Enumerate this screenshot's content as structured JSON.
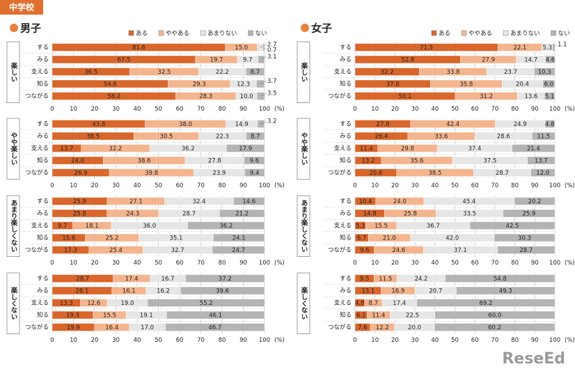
{
  "header": "中学校",
  "watermark": "ReseEd",
  "chart_data": [
    {
      "type": "bar",
      "orientation": "horizontal",
      "stacked": true,
      "title": "男子",
      "panel": "楽しい",
      "legend": "top-right",
      "categories": [
        "する",
        "みる",
        "支える",
        "知る",
        "つながる"
      ],
      "series": [
        {
          "name": "ある",
          "color": "#d9662a",
          "values": [
            81.6,
            67.5,
            36.5,
            54.6,
            58.2
          ]
        },
        {
          "name": "ややある",
          "color": "#f4b58e",
          "values": [
            15.0,
            19.7,
            32.5,
            29.3,
            28.3
          ],
          "value_labels": [
            "15.0",
            "19.7",
            "32.5",
            "29.3",
            "28.3"
          ]
        },
        {
          "name": "あまりない",
          "color": "#e6e6e6",
          "values": [
            2.7,
            9.7,
            22.2,
            12.3,
            10.0
          ],
          "value_labels": [
            "2.7",
            "9.7",
            "22.2",
            "12.3",
            "10.0"
          ]
        },
        {
          "name": "ない",
          "color": "#b4b4b4",
          "values": [
            0.7,
            3.1,
            8.7,
            3.7,
            3.5
          ]
        }
      ],
      "xlim": [
        0,
        100
      ],
      "xticks": [
        0,
        10,
        20,
        30,
        40,
        50,
        60,
        70,
        80,
        90,
        100
      ],
      "x_unit": "(%)",
      "grid": true
    },
    {
      "type": "bar",
      "orientation": "horizontal",
      "stacked": true,
      "panel": "やや楽しい",
      "categories": [
        "する",
        "みる",
        "支える",
        "知る",
        "つながる"
      ],
      "series": [
        {
          "name": "ある",
          "color": "#d9662a",
          "values": [
            43.8,
            38.5,
            13.7,
            24.0,
            26.9
          ],
          "value_labels": [
            "43.8",
            "38.5",
            "13.7",
            "24.0",
            "26.9"
          ]
        },
        {
          "name": "ややある",
          "color": "#f4b58e",
          "values": [
            38.0,
            30.5,
            32.2,
            38.6,
            39.8
          ],
          "value_labels": [
            "38.0",
            "30.5",
            "32.2",
            "38.6",
            "39.8"
          ]
        },
        {
          "name": "あまりない",
          "color": "#e6e6e6",
          "values": [
            14.9,
            22.3,
            36.2,
            27.8,
            23.9
          ]
        },
        {
          "name": "ない",
          "color": "#b4b4b4",
          "values": [
            3.2,
            8.7,
            17.9,
            9.6,
            9.4
          ]
        }
      ],
      "xlim": [
        0,
        100
      ],
      "xticks": [
        0,
        10,
        20,
        30,
        40,
        50,
        60,
        70,
        80,
        90,
        100
      ],
      "x_unit": "(%)",
      "grid": true
    },
    {
      "type": "bar",
      "orientation": "horizontal",
      "stacked": true,
      "panel": "あまり楽しくない",
      "categories": [
        "する",
        "みる",
        "支える",
        "知る",
        "つながる"
      ],
      "series": [
        {
          "name": "ある",
          "color": "#d9662a",
          "values": [
            25.9,
            25.8,
            9.7,
            15.6,
            17.3
          ]
        },
        {
          "name": "ややある",
          "color": "#f4b58e",
          "values": [
            27.1,
            24.3,
            18.1,
            25.2,
            25.4
          ]
        },
        {
          "name": "あまりない",
          "color": "#e6e6e6",
          "values": [
            32.4,
            28.7,
            36.0,
            35.1,
            32.7
          ],
          "value_labels": [
            "32.4",
            "28.7",
            "36.0",
            "35.1",
            "32.7"
          ]
        },
        {
          "name": "ない",
          "color": "#b4b4b4",
          "values": [
            14.6,
            21.2,
            36.2,
            24.1,
            24.7
          ]
        }
      ],
      "xlim": [
        0,
        100
      ],
      "xticks": [
        0,
        10,
        20,
        30,
        40,
        50,
        60,
        70,
        80,
        90,
        100
      ],
      "x_unit": "(%)",
      "grid": true
    },
    {
      "type": "bar",
      "orientation": "horizontal",
      "stacked": true,
      "panel": "楽しくない",
      "categories": [
        "する",
        "みる",
        "支える",
        "知る",
        "つながる"
      ],
      "series": [
        {
          "name": "ある",
          "color": "#d9662a",
          "values": [
            28.7,
            28.1,
            13.3,
            19.3,
            19.9
          ]
        },
        {
          "name": "ややある",
          "color": "#f4b58e",
          "values": [
            17.4,
            16.1,
            12.6,
            15.5,
            16.4
          ]
        },
        {
          "name": "あまりない",
          "color": "#e6e6e6",
          "values": [
            16.7,
            16.2,
            19.0,
            19.1,
            17.0
          ],
          "value_labels": [
            "16.7",
            "16.2",
            "19.0",
            "19.1",
            "17.0"
          ]
        },
        {
          "name": "ない",
          "color": "#b4b4b4",
          "values": [
            37.2,
            39.6,
            55.2,
            46.1,
            46.7
          ]
        }
      ],
      "xlim": [
        0,
        100
      ],
      "xticks": [
        0,
        10,
        20,
        30,
        40,
        50,
        60,
        70,
        80,
        90,
        100
      ],
      "x_unit": "(%)",
      "grid": true
    },
    {
      "type": "bar",
      "orientation": "horizontal",
      "stacked": true,
      "title": "女子",
      "panel": "楽しい",
      "legend": "top-right",
      "categories": [
        "する",
        "みる",
        "支える",
        "知る",
        "つながる"
      ],
      "series": [
        {
          "name": "ある",
          "color": "#d9662a",
          "values": [
            71.5,
            52.8,
            32.2,
            37.8,
            50.1
          ]
        },
        {
          "name": "ややある",
          "color": "#f4b58e",
          "values": [
            22.1,
            27.9,
            33.8,
            35.8,
            31.2
          ]
        },
        {
          "name": "あまりない",
          "color": "#e6e6e6",
          "values": [
            5.3,
            14.7,
            23.7,
            20.4,
            13.6
          ]
        },
        {
          "name": "ない",
          "color": "#b4b4b4",
          "values": [
            1.1,
            4.6,
            10.3,
            6.0,
            5.1
          ],
          "value_labels": [
            "1.1",
            "4.6",
            "10.3",
            "6.0",
            "5.1"
          ]
        }
      ],
      "xlim": [
        0,
        100
      ],
      "xticks": [
        0,
        10,
        20,
        30,
        40,
        50,
        60,
        70,
        80,
        90,
        100
      ],
      "x_unit": "(%)",
      "grid": true
    },
    {
      "type": "bar",
      "orientation": "horizontal",
      "stacked": true,
      "panel": "やや楽しい",
      "categories": [
        "する",
        "みる",
        "支える",
        "知る",
        "つながる"
      ],
      "series": [
        {
          "name": "ある",
          "color": "#d9662a",
          "values": [
            27.8,
            26.4,
            11.4,
            13.2,
            20.8
          ]
        },
        {
          "name": "ややある",
          "color": "#f4b58e",
          "values": [
            42.4,
            33.6,
            29.8,
            35.6,
            38.5
          ]
        },
        {
          "name": "あまりない",
          "color": "#e6e6e6",
          "values": [
            24.9,
            28.6,
            37.4,
            37.5,
            28.7
          ]
        },
        {
          "name": "ない",
          "color": "#b4b4b4",
          "values": [
            4.8,
            11.5,
            21.4,
            13.7,
            12.0
          ],
          "value_labels": [
            "4.8",
            "11.5",
            "21.4",
            "13.7",
            "12.0"
          ]
        }
      ],
      "xlim": [
        0,
        100
      ],
      "xticks": [
        0,
        10,
        20,
        30,
        40,
        50,
        60,
        70,
        80,
        90,
        100
      ],
      "x_unit": "(%)",
      "grid": true
    },
    {
      "type": "bar",
      "orientation": "horizontal",
      "stacked": true,
      "panel": "あまり楽しくない",
      "categories": [
        "する",
        "みる",
        "支える",
        "知る",
        "つながる"
      ],
      "series": [
        {
          "name": "ある",
          "color": "#d9662a",
          "values": [
            10.4,
            14.8,
            5.3,
            6.7,
            9.6
          ]
        },
        {
          "name": "ややある",
          "color": "#f4b58e",
          "values": [
            24.0,
            25.8,
            15.5,
            21.0,
            24.6
          ],
          "value_labels": [
            "24.0",
            "25.8",
            "15.5",
            "21.0",
            "24.6"
          ]
        },
        {
          "name": "あまりない",
          "color": "#e6e6e6",
          "values": [
            45.4,
            33.5,
            36.7,
            42.0,
            37.1
          ],
          "value_labels": [
            "45.4",
            "33.5",
            "36.7",
            "42.0",
            "37.1"
          ]
        },
        {
          "name": "ない",
          "color": "#b4b4b4",
          "values": [
            20.2,
            25.9,
            42.5,
            30.3,
            28.7
          ]
        }
      ],
      "xlim": [
        0,
        100
      ],
      "xticks": [
        0,
        10,
        20,
        30,
        40,
        50,
        60,
        70,
        80,
        90,
        100
      ],
      "x_unit": "(%)",
      "grid": true
    },
    {
      "type": "bar",
      "orientation": "horizontal",
      "stacked": true,
      "panel": "楽しくない",
      "categories": [
        "する",
        "みる",
        "支える",
        "知る",
        "つながる"
      ],
      "series": [
        {
          "name": "ある",
          "color": "#d9662a",
          "values": [
            9.5,
            13.1,
            4.8,
            6.1,
            7.6
          ]
        },
        {
          "name": "ややある",
          "color": "#f4b58e",
          "values": [
            11.5,
            16.9,
            8.7,
            11.4,
            12.2
          ]
        },
        {
          "name": "あまりない",
          "color": "#e6e6e6",
          "values": [
            24.2,
            20.7,
            17.4,
            22.5,
            20.0
          ],
          "value_labels": [
            "24.2",
            "20.7",
            "17.4",
            "22.5",
            "20.0"
          ]
        },
        {
          "name": "ない",
          "color": "#b4b4b4",
          "values": [
            54.8,
            49.3,
            69.2,
            60.0,
            60.2
          ],
          "value_labels": [
            "54.8",
            "49.3",
            "69.2",
            "60.0",
            "60.2"
          ]
        }
      ],
      "xlim": [
        0,
        100
      ],
      "xticks": [
        0,
        10,
        20,
        30,
        40,
        50,
        60,
        70,
        80,
        90,
        100
      ],
      "x_unit": "(%)",
      "grid": true
    }
  ]
}
